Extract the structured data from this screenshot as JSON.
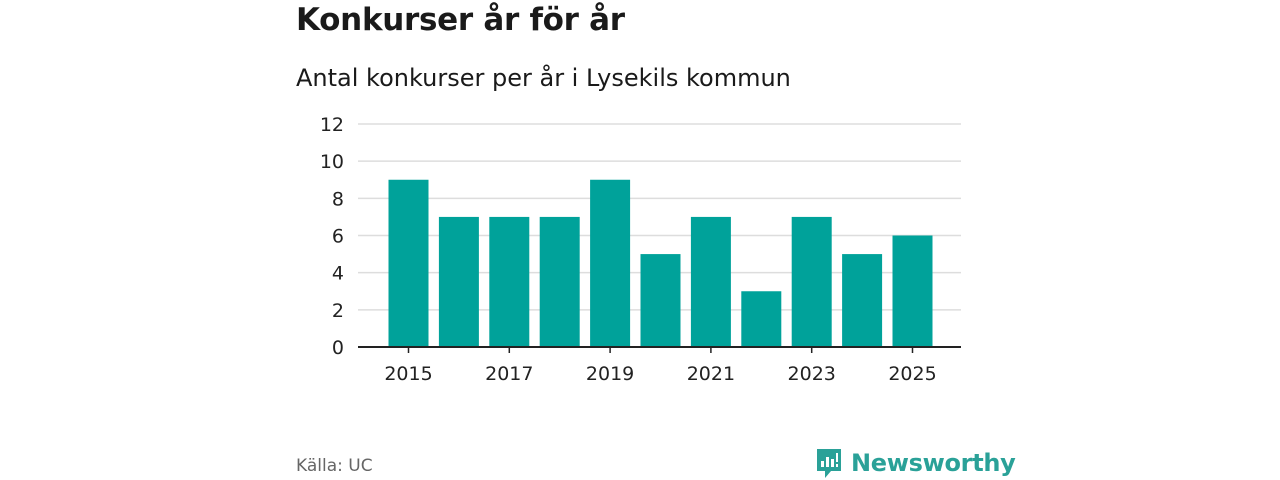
{
  "title": "Konkurser år för år",
  "subtitle": "Antal konkurser per år i Lysekils kommun",
  "source": "Källa: UC",
  "brand": {
    "name": "Newsworthy",
    "icon": "newsworthy-logo-icon"
  },
  "colors": {
    "bar": "#00a29a",
    "grid": "#dddddd",
    "axis": "#222222",
    "brand": "#2aa198"
  },
  "chart_data": {
    "type": "bar",
    "categories": [
      "2015",
      "2016",
      "2017",
      "2018",
      "2019",
      "2020",
      "2021",
      "2022",
      "2023",
      "2024",
      "2025"
    ],
    "values": [
      9,
      7,
      7,
      7,
      9,
      5,
      7,
      3,
      7,
      5,
      6
    ],
    "x_tick_labels": [
      "2015",
      "2017",
      "2019",
      "2021",
      "2023",
      "2025"
    ],
    "y_ticks": [
      0,
      2,
      4,
      6,
      8,
      10,
      12
    ],
    "ylim": [
      0,
      12
    ],
    "xlabel": "",
    "ylabel": "",
    "grid": true,
    "legend": "none"
  }
}
